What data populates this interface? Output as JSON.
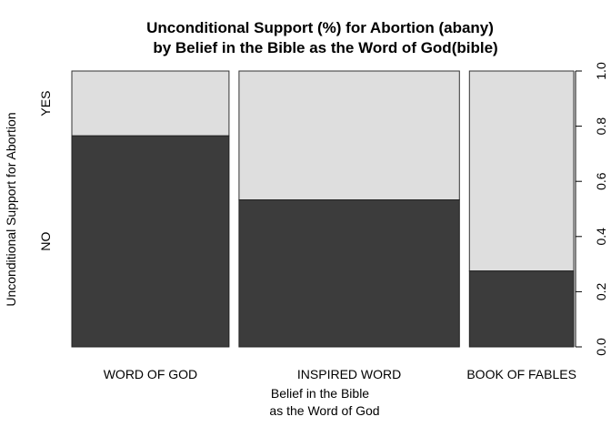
{
  "chart_data": {
    "type": "mosaic",
    "title_line1": "Unconditional Support (%) for Abortion (abany)",
    "title_line2": "by Belief in the Bible as the Word of God(bible)",
    "xlabel_line1": "Belief in the Bible",
    "xlabel_line2": "as the Word of God",
    "ylabel": "Unconditional Support for Abortion",
    "categories": [
      "WORD OF GOD",
      "INSPIRED WORD",
      "BOOK OF FABLES"
    ],
    "category_widths": [
      0.306,
      0.429,
      0.203
    ],
    "levels": [
      "NO",
      "YES"
    ],
    "series": [
      {
        "name": "NO",
        "values": [
          0.765,
          0.533,
          0.275
        ],
        "color": "#3c3c3c"
      },
      {
        "name": "YES",
        "values": [
          0.235,
          0.467,
          0.725
        ],
        "color": "#dedede"
      }
    ],
    "right_axis": {
      "ylim": [
        0,
        1
      ],
      "ticks": [
        "0.0",
        "0.2",
        "0.4",
        "0.6",
        "0.8",
        "1.0"
      ]
    },
    "grid": false
  }
}
